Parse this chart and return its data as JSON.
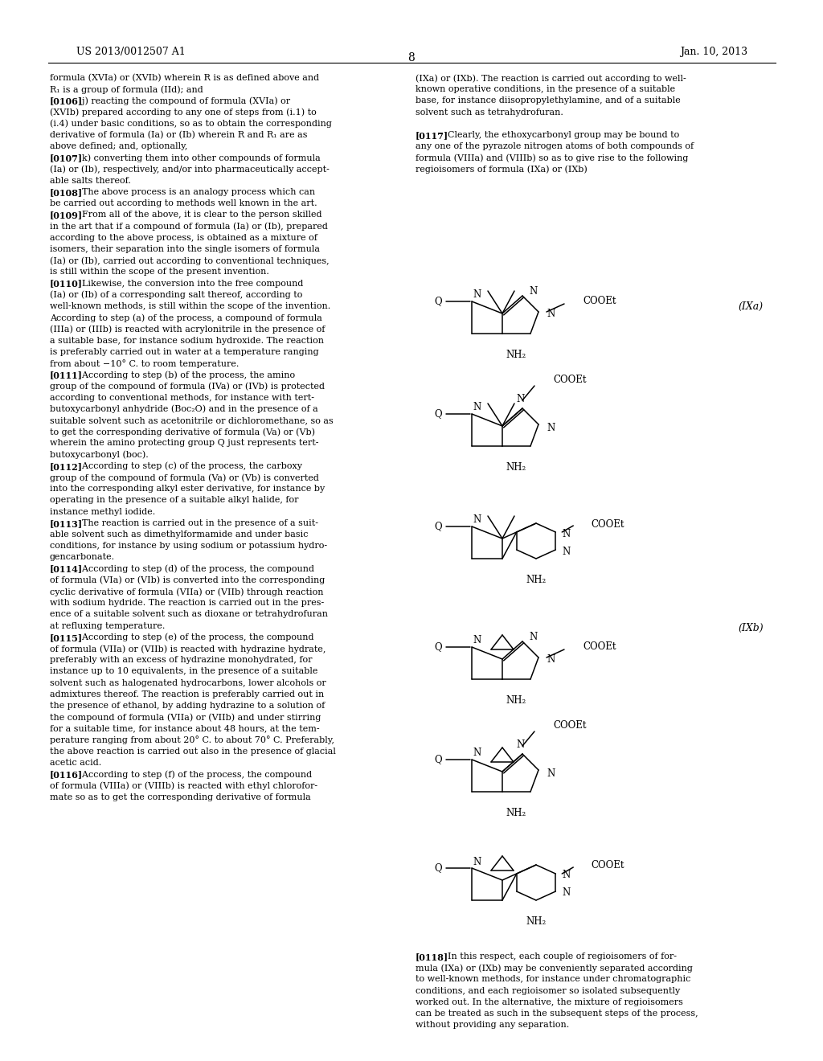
{
  "page_header_left": "US 2013/0012507 A1",
  "page_header_right": "Jan. 10, 2013",
  "page_number": "8",
  "background_color": "#ffffff",
  "text_color": "#000000",
  "left_col_lines": [
    "formula (XVIa) or (XVIb) wherein R is as defined above and",
    "R₁ is a group of formula (IId); and",
    "[0106]    j) reacting the compound of formula (XVIa) or",
    "(XVIb) prepared according to any one of steps from (i.1) to",
    "(i.4) under basic conditions, so as to obtain the corresponding",
    "derivative of formula (Ia) or (Ib) wherein R and R₁ are as",
    "above defined; and, optionally,",
    "[0107]    k) converting them into other compounds of formula",
    "(Ia) or (Ib), respectively, and/or into pharmaceutically accept-",
    "able salts thereof.",
    "[0108]    The above process is an analogy process which can",
    "be carried out according to methods well known in the art.",
    "[0109]    From all of the above, it is clear to the person skilled",
    "in the art that if a compound of formula (Ia) or (Ib), prepared",
    "according to the above process, is obtained as a mixture of",
    "isomers, their separation into the single isomers of formula",
    "(Ia) or (Ib), carried out according to conventional techniques,",
    "is still within the scope of the present invention.",
    "[0110]    Likewise, the conversion into the free compound",
    "(Ia) or (Ib) of a corresponding salt thereof, according to",
    "well-known methods, is still within the scope of the invention.",
    "According to step (a) of the process, a compound of formula",
    "(IIIa) or (IIIb) is reacted with acrylonitrile in the presence of",
    "a suitable base, for instance sodium hydroxide. The reaction",
    "is preferably carried out in water at a temperature ranging",
    "from about −10° C. to room temperature.",
    "[0111]    According to step (b) of the process, the amino",
    "group of the compound of formula (IVa) or (IVb) is protected",
    "according to conventional methods, for instance with tert-",
    "butoxycarbonyl anhydride (Boc₂O) and in the presence of a",
    "suitable solvent such as acetonitrile or dichloromethane, so as",
    "to get the corresponding derivative of formula (Va) or (Vb)",
    "wherein the amino protecting group Q just represents tert-",
    "butoxycarbonyl (boc).",
    "[0112]    According to step (c) of the process, the carboxy",
    "group of the compound of formula (Va) or (Vb) is converted",
    "into the corresponding alkyl ester derivative, for instance by",
    "operating in the presence of a suitable alkyl halide, for",
    "instance methyl iodide.",
    "[0113]    The reaction is carried out in the presence of a suit-",
    "able solvent such as dimethylformamide and under basic",
    "conditions, for instance by using sodium or potassium hydro-",
    "gencarbonate.",
    "[0114]    According to step (d) of the process, the compound",
    "of formula (VIa) or (VIb) is converted into the corresponding",
    "cyclic derivative of formula (VIIa) or (VIIb) through reaction",
    "with sodium hydride. The reaction is carried out in the pres-",
    "ence of a suitable solvent such as dioxane or tetrahydrofuran",
    "at refluxing temperature.",
    "[0115]    According to step (e) of the process, the compound",
    "of formula (VIIa) or (VIIb) is reacted with hydrazine hydrate,",
    "preferably with an excess of hydrazine monohydrated, for",
    "instance up to 10 equivalents, in the presence of a suitable",
    "solvent such as halogenated hydrocarbons, lower alcohols or",
    "admixtures thereof. The reaction is preferably carried out in",
    "the presence of ethanol, by adding hydrazine to a solution of",
    "the compound of formula (VIIa) or (VIIb) and under stirring",
    "for a suitable time, for instance about 48 hours, at the tem-",
    "perature ranging from about 20° C. to about 70° C. Preferably,",
    "the above reaction is carried out also in the presence of glacial",
    "acetic acid.",
    "[0116]    According to step (f) of the process, the compound",
    "of formula (VIIIa) or (VIIIb) is reacted with ethyl chlorofor-",
    "mate so as to get the corresponding derivative of formula"
  ],
  "right_col_lines": [
    "(IXa) or (IXb). The reaction is carried out according to well-",
    "known operative conditions, in the presence of a suitable",
    "base, for instance diisopropylethylamine, and of a suitable",
    "solvent such as tetrahydrofuran.",
    "",
    "[0117]    Clearly, the ethoxycarbonyl group may be bound to",
    "any one of the pyrazole nitrogen atoms of both compounds of",
    "formula (VIIIa) and (VIIIb) so as to give rise to the following",
    "regioisomers of formula (IXa) or (IXb)"
  ],
  "right_col_note": "[0118]    In this respect, each couple of regioisomers of for-\nmula (IXa) or (IXb) may be conveniently separated according\nto well-known methods, for instance under chromatographic\nconditions, and each regioisomer so isolated subsequently\nworked out. In the alternative, the mixture of regioisomers\ncan be treated as such in the subsequent steps of the process,\nwithout providing any separation.",
  "label_IXa": "(IXa)",
  "label_IXb": "(IXb)"
}
